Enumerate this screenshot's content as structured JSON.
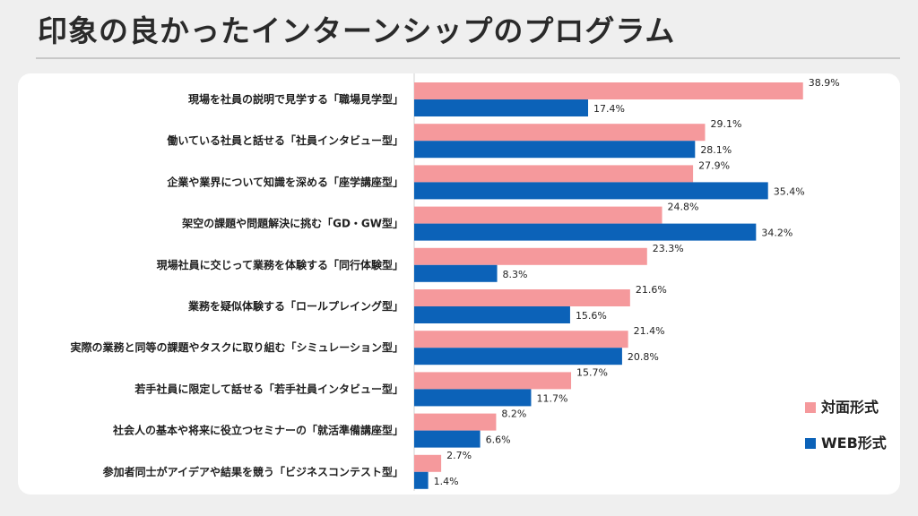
{
  "page_title": "印象の良かったインターンシップのプログラム",
  "colors": {
    "series1": "#f5999c",
    "series2": "#0c62b8"
  },
  "chart_data": {
    "type": "bar",
    "orientation": "horizontal",
    "categories": [
      "現場を社員の説明で見学する「職場見学型」",
      "働いている社員と話せる「社員インタビュー型」",
      "企業や業界について知識を深める「座学講座型」",
      "架空の課題や問題解決に挑む「GD・GW型」",
      "現場社員に交じって業務を体験する「同行体験型」",
      "業務を疑似体験する「ロールプレイング型」",
      "実際の業務と同等の課題やタスクに取り組む「シミュレーション型」",
      "若手社員に限定して話せる「若手社員インタビュー型」",
      "社会人の基本や将来に役立つセミナーの「就活準備講座型」",
      "参加者同士がアイデアや結果を競う「ビジネスコンテスト型」"
    ],
    "series": [
      {
        "name": "対面形式",
        "values": [
          38.9,
          29.1,
          27.9,
          24.8,
          23.3,
          21.6,
          21.4,
          15.7,
          8.2,
          2.7
        ]
      },
      {
        "name": "WEB形式",
        "values": [
          17.4,
          28.1,
          35.4,
          34.2,
          8.3,
          15.6,
          20.8,
          11.7,
          6.6,
          1.4
        ]
      }
    ],
    "value_suffix": "%",
    "xlim": [
      0,
      40
    ],
    "grid": false,
    "legend_position": "right"
  }
}
